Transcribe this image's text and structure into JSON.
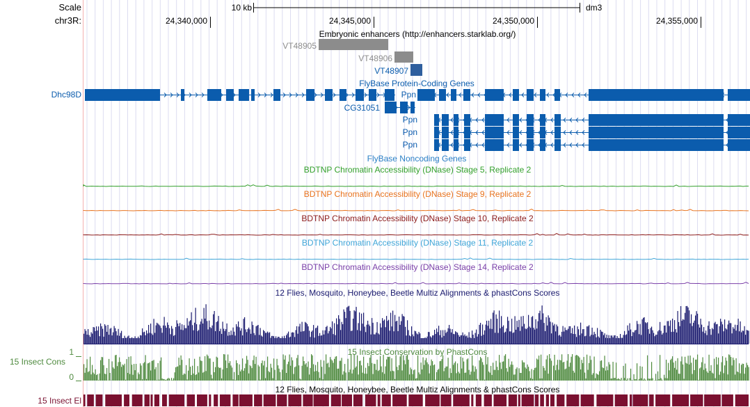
{
  "ruler": {
    "scale_label": "Scale",
    "chrom_label": "chr3R:",
    "scale_bar_label": "10 kb",
    "assembly": "dm3",
    "ticks": [
      "24,340,000",
      "24,345,000",
      "24,350,000",
      "24,355,000"
    ]
  },
  "tracks": {
    "enhancers": {
      "title": "Embryonic enhancers (http://enhancers.starklab.org/)",
      "items": [
        "VT48905",
        "VT48906",
        "VT48907"
      ]
    },
    "flybase_coding": {
      "title": "FlyBase Protein-Coding Genes",
      "genes": [
        "Dhc98D",
        "Ppn",
        "CG31051",
        "Ppn",
        "Ppn",
        "Ppn"
      ]
    },
    "flybase_noncoding": {
      "title": "FlyBase Noncoding Genes"
    },
    "dnase": [
      {
        "title": "BDTNP Chromatin Accessibility (DNase) Stage 5, Replicate 2",
        "color": "#33a02c"
      },
      {
        "title": "BDTNP Chromatin Accessibility (DNase) Stage 9, Replicate 2",
        "color": "#e8731e"
      },
      {
        "title": "BDTNP Chromatin Accessibility (DNase) Stage 10, Replicate 2",
        "color": "#8b1a1a"
      },
      {
        "title": "BDTNP Chromatin Accessibility (DNase) Stage 11, Replicate 2",
        "color": "#40a6d8"
      },
      {
        "title": "BDTNP Chromatin Accessibility (DNase) Stage 14, Replicate 2",
        "color": "#7a3fa8"
      }
    ],
    "multiz": {
      "title": "12 Flies, Mosquito, Honeybee, Beetle Multiz Alignments & phastCons Scores"
    },
    "phastcons": {
      "title": "15 Insect Conservation by PhastCons",
      "side_label": "15 Insect Cons",
      "y_max": "1",
      "y_min": "0"
    },
    "elements": {
      "title": "12 Flies, Mosquito, Honeybee, Beetle Multiz Alignments & phastCons Scores",
      "side_label": "15 Insect El"
    }
  },
  "colors": {
    "gene_blue": "#0b5cad",
    "enhancer_gray": "#8c8c8c",
    "multiz_navy": "#19196e",
    "cons_green": "#4e8a3e",
    "element_maroon": "#7a1030"
  }
}
